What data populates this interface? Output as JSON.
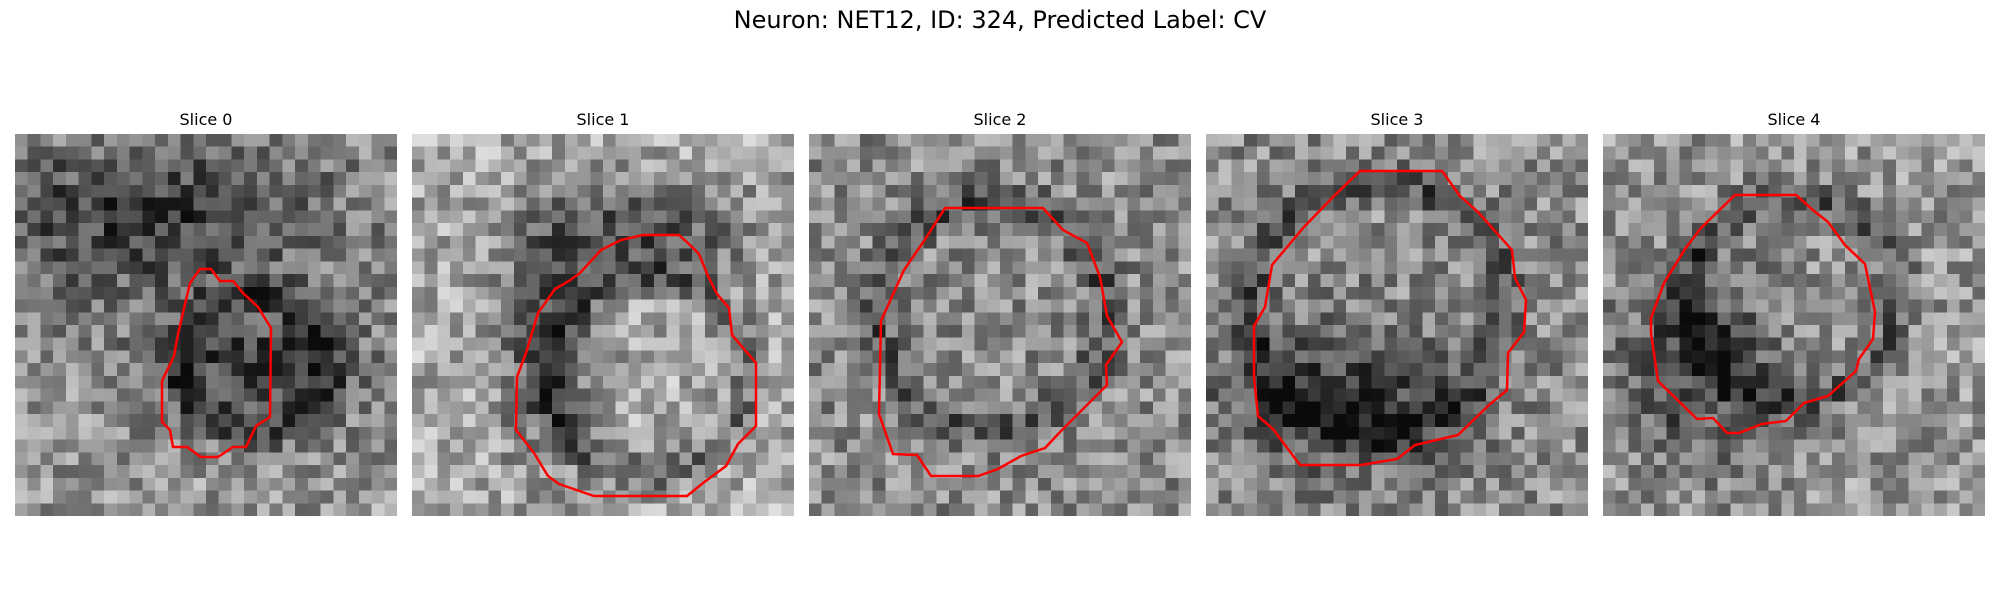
{
  "figure": {
    "title": "Neuron: NET12, ID: 324, Predicted Label: CV",
    "contour_color": "#ff0000"
  },
  "panels": [
    {
      "title": "Slice 0"
    },
    {
      "title": "Slice 1"
    },
    {
      "title": "Slice 2"
    },
    {
      "title": "Slice 3"
    },
    {
      "title": "Slice 4"
    }
  ]
}
